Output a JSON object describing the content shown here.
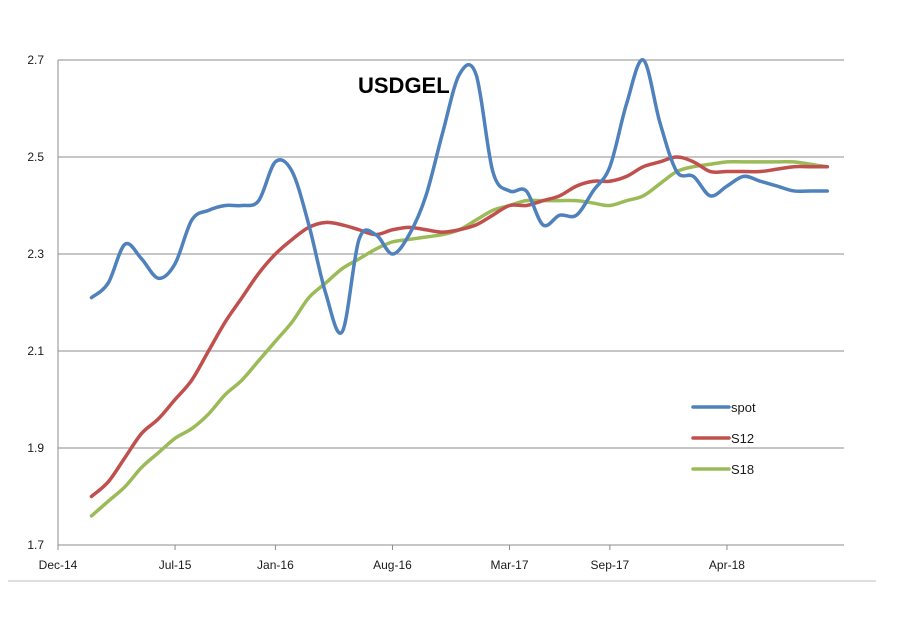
{
  "chart_data": {
    "type": "line",
    "title": "USDGEL",
    "xlabel": "",
    "ylabel": "",
    "ylim": [
      1.7,
      2.7
    ],
    "y_ticks": [
      "1.7",
      "1.9",
      "2.1",
      "2.3",
      "2.5",
      "2.7"
    ],
    "x_ticks": [
      "Dec-14",
      "Jul-15",
      "Jan-16",
      "Aug-16",
      "Mar-17",
      "Sep-17",
      "Apr-18"
    ],
    "x_tick_positions": [
      0,
      7,
      13,
      20,
      27,
      33,
      40
    ],
    "xlim": [
      0,
      47
    ],
    "grid": "horizontal",
    "legend_position": "right",
    "colors": {
      "spot": "#4f81bd",
      "S12": "#c0504d",
      "S18": "#9bbb59",
      "grid": "#8c8c8c",
      "axis": "#8c8c8c"
    },
    "x": [
      2,
      3,
      4,
      5,
      6,
      7,
      8,
      9,
      10,
      11,
      12,
      13,
      14,
      15,
      16,
      17,
      18,
      19,
      20,
      21,
      22,
      23,
      24,
      25,
      26,
      27,
      28,
      29,
      30,
      31,
      32,
      33,
      34,
      35,
      36,
      37,
      38,
      39,
      40,
      41,
      42,
      43,
      44,
      45,
      46
    ],
    "series": [
      {
        "name": "spot",
        "values": [
          2.21,
          2.24,
          2.32,
          2.29,
          2.25,
          2.28,
          2.37,
          2.39,
          2.4,
          2.4,
          2.41,
          2.49,
          2.47,
          2.36,
          2.22,
          2.14,
          2.33,
          2.34,
          2.3,
          2.34,
          2.42,
          2.55,
          2.67,
          2.67,
          2.47,
          2.43,
          2.43,
          2.36,
          2.38,
          2.38,
          2.43,
          2.48,
          2.61,
          2.7,
          2.57,
          2.47,
          2.46,
          2.42,
          2.44,
          2.46,
          2.45,
          2.44,
          2.43,
          2.43,
          2.43
        ]
      },
      {
        "name": "S12",
        "values": [
          1.8,
          1.83,
          1.88,
          1.93,
          1.96,
          2.0,
          2.04,
          2.1,
          2.16,
          2.21,
          2.26,
          2.3,
          2.33,
          2.355,
          2.365,
          2.36,
          2.35,
          2.34,
          2.35,
          2.355,
          2.35,
          2.345,
          2.35,
          2.36,
          2.38,
          2.4,
          2.4,
          2.41,
          2.42,
          2.44,
          2.45,
          2.45,
          2.46,
          2.48,
          2.49,
          2.5,
          2.49,
          2.47,
          2.47,
          2.47,
          2.47,
          2.475,
          2.48,
          2.48,
          2.48
        ]
      },
      {
        "name": "S18",
        "values": [
          1.76,
          1.79,
          1.82,
          1.86,
          1.89,
          1.92,
          1.94,
          1.97,
          2.01,
          2.04,
          2.08,
          2.12,
          2.16,
          2.21,
          2.24,
          2.27,
          2.29,
          2.31,
          2.325,
          2.33,
          2.335,
          2.34,
          2.35,
          2.37,
          2.39,
          2.4,
          2.41,
          2.41,
          2.41,
          2.41,
          2.405,
          2.4,
          2.41,
          2.42,
          2.445,
          2.47,
          2.48,
          2.485,
          2.49,
          2.49,
          2.49,
          2.49,
          2.49,
          2.485,
          2.48
        ]
      }
    ]
  }
}
